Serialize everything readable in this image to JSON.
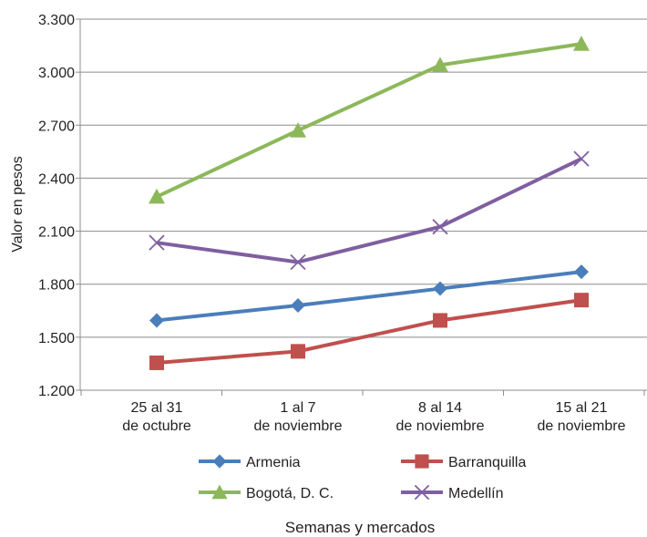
{
  "chart_data": {
    "type": "line",
    "title": "",
    "xlabel": "Semanas y mercados",
    "ylabel": "Valor en pesos",
    "ylim": [
      1200,
      3300
    ],
    "yticks": [
      1200,
      1500,
      1800,
      2100,
      2400,
      2700,
      3000,
      3300
    ],
    "ytick_labels": [
      "1.200",
      "1.500",
      "1.800",
      "2.100",
      "2.400",
      "2.700",
      "3.000",
      "3.300"
    ],
    "categories": [
      [
        "25 al 31",
        "de octubre"
      ],
      [
        "1 al 7",
        "de noviembre"
      ],
      [
        "8 al 14",
        "de noviembre"
      ],
      [
        "15 al 21",
        "de noviembre"
      ]
    ],
    "grid": "horizontal",
    "legend_position": "bottom",
    "series": [
      {
        "name": "Armenia",
        "color": "#4a7ebb",
        "marker": "diamond",
        "values": [
          1595,
          1680,
          1775,
          1870
        ]
      },
      {
        "name": "Barranquilla",
        "color": "#c0504d",
        "marker": "square",
        "values": [
          1355,
          1420,
          1595,
          1710
        ]
      },
      {
        "name": "Bogotá, D. C.",
        "color": "#8db85a",
        "marker": "triangle",
        "values": [
          2295,
          2670,
          3040,
          3160
        ]
      },
      {
        "name": "Medellín",
        "color": "#7f5fa0",
        "marker": "x",
        "values": [
          2035,
          1925,
          2125,
          2510
        ]
      }
    ]
  }
}
